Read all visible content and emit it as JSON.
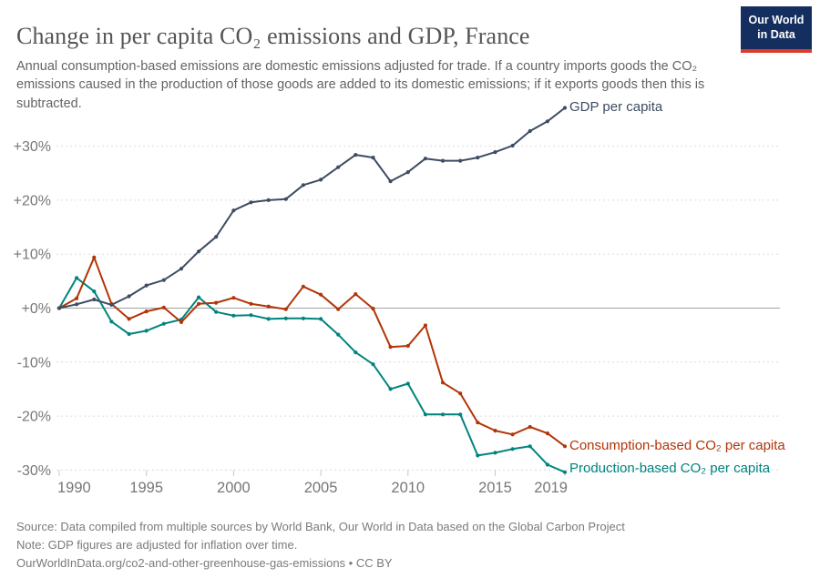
{
  "header": {
    "title": "Change in per capita CO₂ emissions and GDP, France",
    "logo": {
      "line1": "Our World",
      "line2": "in Data"
    }
  },
  "subtitle": "Annual consumption-based emissions are domestic emissions adjusted for trade. If a country imports goods the CO₂ emissions caused in the production of those goods are added to its domestic emissions; if it exports goods then this is subtracted.",
  "chart_data": {
    "type": "line",
    "title": "Change in per capita CO₂ emissions and GDP, France",
    "x": [
      1990,
      1991,
      1992,
      1993,
      1994,
      1995,
      1996,
      1997,
      1998,
      1999,
      2000,
      2001,
      2002,
      2003,
      2004,
      2005,
      2006,
      2007,
      2008,
      2009,
      2010,
      2011,
      2012,
      2013,
      2014,
      2015,
      2016,
      2017,
      2018,
      2019
    ],
    "x_ticks": [
      1990,
      1995,
      2000,
      2005,
      2010,
      2015,
      2019
    ],
    "y_ticks": [
      30,
      20,
      10,
      0,
      -10,
      -20,
      -30
    ],
    "y_tick_labels": [
      "+30%",
      "+20%",
      "+10%",
      "+0%",
      "-10%",
      "-20%",
      "-30%"
    ],
    "ylim": [
      -32,
      38
    ],
    "grid": "dashed-horizontal",
    "legend_position": "end-of-line-labels",
    "unit": "% change",
    "series": [
      {
        "id": "production",
        "label": "Production-based CO₂ per capita",
        "color": "#00847e",
        "values": [
          0,
          5.6,
          3.1,
          -2.5,
          -4.8,
          -4.2,
          -2.9,
          -2.1,
          2.0,
          -0.7,
          -1.4,
          -1.3,
          -2.0,
          -1.9,
          -1.9,
          -2.0,
          -4.9,
          -8.2,
          -10.4,
          -15.0,
          -14.0,
          -19.7,
          -19.7,
          -19.7,
          -27.3,
          -26.8,
          -26.1,
          -25.6,
          -29.0,
          -30.4
        ]
      },
      {
        "id": "consumption",
        "label": "Consumption-based CO₂ per capita",
        "color": "#b13507",
        "values": [
          0,
          1.8,
          9.4,
          0.8,
          -2.0,
          -0.6,
          0.1,
          -2.6,
          0.8,
          1.0,
          1.9,
          0.8,
          0.3,
          -0.2,
          4.0,
          2.5,
          -0.2,
          2.6,
          -0.1,
          -7.2,
          -7.0,
          -3.2,
          -13.8,
          -15.8,
          -21.2,
          -22.7,
          -23.4,
          -22.0,
          -23.2,
          -25.6
        ]
      },
      {
        "id": "gdp",
        "label": "GDP per capita",
        "color": "#3e4c63",
        "values": [
          0,
          0.7,
          1.6,
          0.6,
          2.2,
          4.2,
          5.2,
          7.3,
          10.5,
          13.2,
          18.1,
          19.6,
          20.0,
          20.2,
          22.8,
          23.8,
          26.1,
          28.4,
          27.9,
          23.5,
          25.2,
          27.7,
          27.3,
          27.3,
          27.9,
          28.9,
          30.1,
          32.8,
          34.6,
          37.1
        ]
      }
    ]
  },
  "footer": {
    "source": "Source: Data compiled from multiple sources by World Bank, Our World in Data based on the Global Carbon Project",
    "note": "Note: GDP figures are adjusted for inflation over time.",
    "link": "OurWorldInData.org/co2-and-other-greenhouse-gas-emissions • CC BY"
  },
  "colors": {
    "gdp_line": "#3e4c63",
    "consumption_line": "#b13507",
    "production_line": "#00847e",
    "gridline": "#dcdcdc",
    "zero_line": "#a3a3a3",
    "axis_label": "#777777",
    "logo_bg": "#142f5f",
    "logo_bar": "#dc3a2b"
  }
}
